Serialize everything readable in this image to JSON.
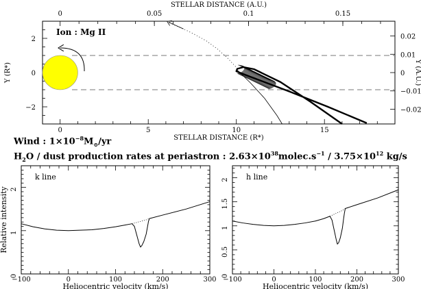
{
  "texts": {
    "wind_prefix": "Wind : 1×10",
    "wind_exp": "−8",
    "wind_unit_pre": "M",
    "wind_sun": "⊙",
    "wind_unit_post": "/yr",
    "rates_h": "H",
    "rates_sub2": "2",
    "rates_text1": "O / dust production rates at periastron : 2.63×10",
    "rates_exp1": "38",
    "rates_text2": "molec.s",
    "rates_exp2": "−1",
    "rates_text3": " / 3.75×10",
    "rates_exp3": "12",
    "rates_text4": " kg/s"
  },
  "chart_data": [
    {
      "id": "orbit",
      "type": "scatter",
      "xlabel_bottom": "STELLAR DISTANCE (R*)",
      "xlabel_top": "STELLAR DISTANCE (A.U.)",
      "ylabel_left": "Y (R*)",
      "ylabel_right": "Y (A.U.)",
      "annotation": "Ion : Mg II",
      "xlim": [
        -1,
        19
      ],
      "ylim": [
        -3,
        3
      ],
      "x_ticks": [
        0,
        5,
        10,
        15
      ],
      "y_ticks": [
        -2,
        0,
        2
      ],
      "top_ticks": [
        "0",
        "0.05",
        "0.1",
        "0.15"
      ],
      "top_tick_au": [
        0,
        0.05,
        0.1,
        0.15
      ],
      "right_ticks": [
        "0.02",
        "0.01",
        "0",
        "−0.01",
        "−0.02"
      ],
      "right_tick_au": [
        0.02,
        0.01,
        0,
        -0.01,
        -0.02
      ],
      "au_per_rstar": 0.00935,
      "star": {
        "center": [
          0,
          0
        ],
        "radius": 1,
        "color": "#ffff00"
      },
      "dashed_lines_y": [
        1,
        -1
      ],
      "comet_orbit": [
        [
          17.4,
          -2.95
        ],
        [
          15.2,
          -2.0
        ],
        [
          13.0,
          -1.1
        ],
        [
          11.2,
          -0.4
        ],
        [
          10.3,
          -0.05
        ],
        [
          10.0,
          0.08
        ],
        [
          10.05,
          0.22
        ],
        [
          10.4,
          0.32
        ],
        [
          11.0,
          0.2
        ],
        [
          12.5,
          -0.55
        ],
        [
          14.2,
          -1.7
        ],
        [
          16.0,
          -3.0
        ]
      ],
      "trajectory": [
        [
          6.2,
          2.9
        ],
        [
          6.9,
          2.6
        ],
        [
          7.6,
          2.25
        ],
        [
          8.3,
          1.85
        ],
        [
          8.9,
          1.4
        ],
        [
          9.5,
          0.85
        ],
        [
          10.0,
          0.3
        ]
      ],
      "tail_line": [
        [
          10.0,
          0.2
        ],
        [
          10.8,
          -0.6
        ],
        [
          11.6,
          -1.5
        ],
        [
          12.3,
          -2.5
        ],
        [
          12.6,
          -3.0
        ]
      ]
    },
    {
      "id": "k-line",
      "type": "line",
      "label": "k line",
      "xlabel": "Heliocentric velocity (km/s)",
      "ylabel": "Relative intensity",
      "xlim": [
        -100,
        300
      ],
      "ylim": [
        0,
        2.5
      ],
      "x_ticks": [
        -100,
        0,
        100,
        200,
        300
      ],
      "y_ticks": [
        0,
        1,
        2
      ],
      "profile": {
        "x": [
          -100,
          -75,
          -50,
          -25,
          0,
          25,
          50,
          75,
          100,
          120,
          135,
          140,
          145,
          150,
          153,
          156,
          160,
          165,
          168,
          170,
          172,
          200,
          250,
          300
        ],
        "y": [
          1.16,
          1.09,
          1.04,
          1.01,
          1.0,
          1.01,
          1.02,
          1.05,
          1.09,
          1.13,
          1.16,
          1.1,
          0.9,
          0.7,
          0.62,
          0.66,
          0.75,
          0.92,
          1.1,
          1.22,
          1.28,
          1.36,
          1.5,
          1.67
        ]
      },
      "continuum": {
        "x": [
          135,
          145,
          155,
          165,
          172
        ],
        "y": [
          1.16,
          1.19,
          1.22,
          1.25,
          1.28
        ]
      }
    },
    {
      "id": "h-line",
      "type": "line",
      "label": "h line",
      "xlabel": "Heliocentric velocity (km/s)",
      "ylabel": "",
      "xlim": [
        -100,
        300
      ],
      "ylim": [
        0,
        2.25
      ],
      "x_ticks": [
        -100,
        0,
        100,
        200,
        300
      ],
      "y_ticks": [
        0,
        0.5,
        1,
        1.5,
        2
      ],
      "y_tick_labels": [
        "0",
        "0.5",
        "1",
        "1.5",
        "2"
      ],
      "profile": {
        "x": [
          -100,
          -75,
          -50,
          -25,
          0,
          25,
          50,
          75,
          100,
          120,
          135,
          140,
          145,
          150,
          153,
          156,
          160,
          165,
          168,
          170,
          172,
          200,
          250,
          300
        ],
        "y": [
          1.1,
          1.06,
          1.03,
          1.01,
          1.0,
          1.01,
          1.03,
          1.06,
          1.1,
          1.15,
          1.2,
          1.12,
          0.92,
          0.72,
          0.62,
          0.65,
          0.75,
          0.95,
          1.15,
          1.27,
          1.36,
          1.44,
          1.58,
          1.75
        ]
      },
      "continuum": {
        "x": [
          135,
          145,
          155,
          165,
          172
        ],
        "y": [
          1.2,
          1.24,
          1.28,
          1.32,
          1.36
        ]
      }
    }
  ]
}
